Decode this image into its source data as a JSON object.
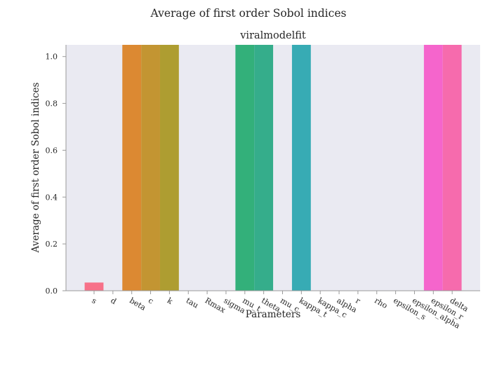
{
  "figure_title": "Average of first order Sobol indices",
  "chart_data": {
    "type": "bar",
    "title": "viralmodelfit",
    "xlabel": "Parameters",
    "ylabel": "Average of first order Sobol indices",
    "categories": [
      "s",
      "d",
      "beta",
      "c",
      "k",
      "tau",
      "Rmax",
      "sigma",
      "mu_t",
      "theta",
      "mu_c",
      "kappa_t",
      "kappa_c",
      "alpha",
      "r",
      "rho",
      "epsilon_s",
      "epsilon_alpha",
      "epsilon_r",
      "delta"
    ],
    "values": [
      0.035,
      0.0,
      1.05,
      1.05,
      1.05,
      0.0,
      0.0,
      0.0,
      1.05,
      1.05,
      0.0,
      1.05,
      0.0,
      0.0,
      0.0,
      0.0,
      0.0,
      0.0,
      1.05,
      1.05
    ],
    "colors": [
      "#f77189",
      "#f7754f",
      "#dc8932",
      "#c39532",
      "#ae9d31",
      "#97a431",
      "#77ab31",
      "#31b33e",
      "#33b07a",
      "#35ad8b",
      "#36ada4",
      "#37abb4",
      "#38a9c5",
      "#3ba3ec",
      "#8197f4",
      "#a48cf4",
      "#cc7af4",
      "#f45cf2",
      "#f565cc",
      "#f66bad"
    ],
    "ylim": [
      0,
      1.05
    ],
    "yticks": [
      "0.0",
      "0.2",
      "0.4",
      "0.6",
      "0.8",
      "1.0"
    ],
    "plot_background": "#eaeaf2",
    "grid": false
  }
}
